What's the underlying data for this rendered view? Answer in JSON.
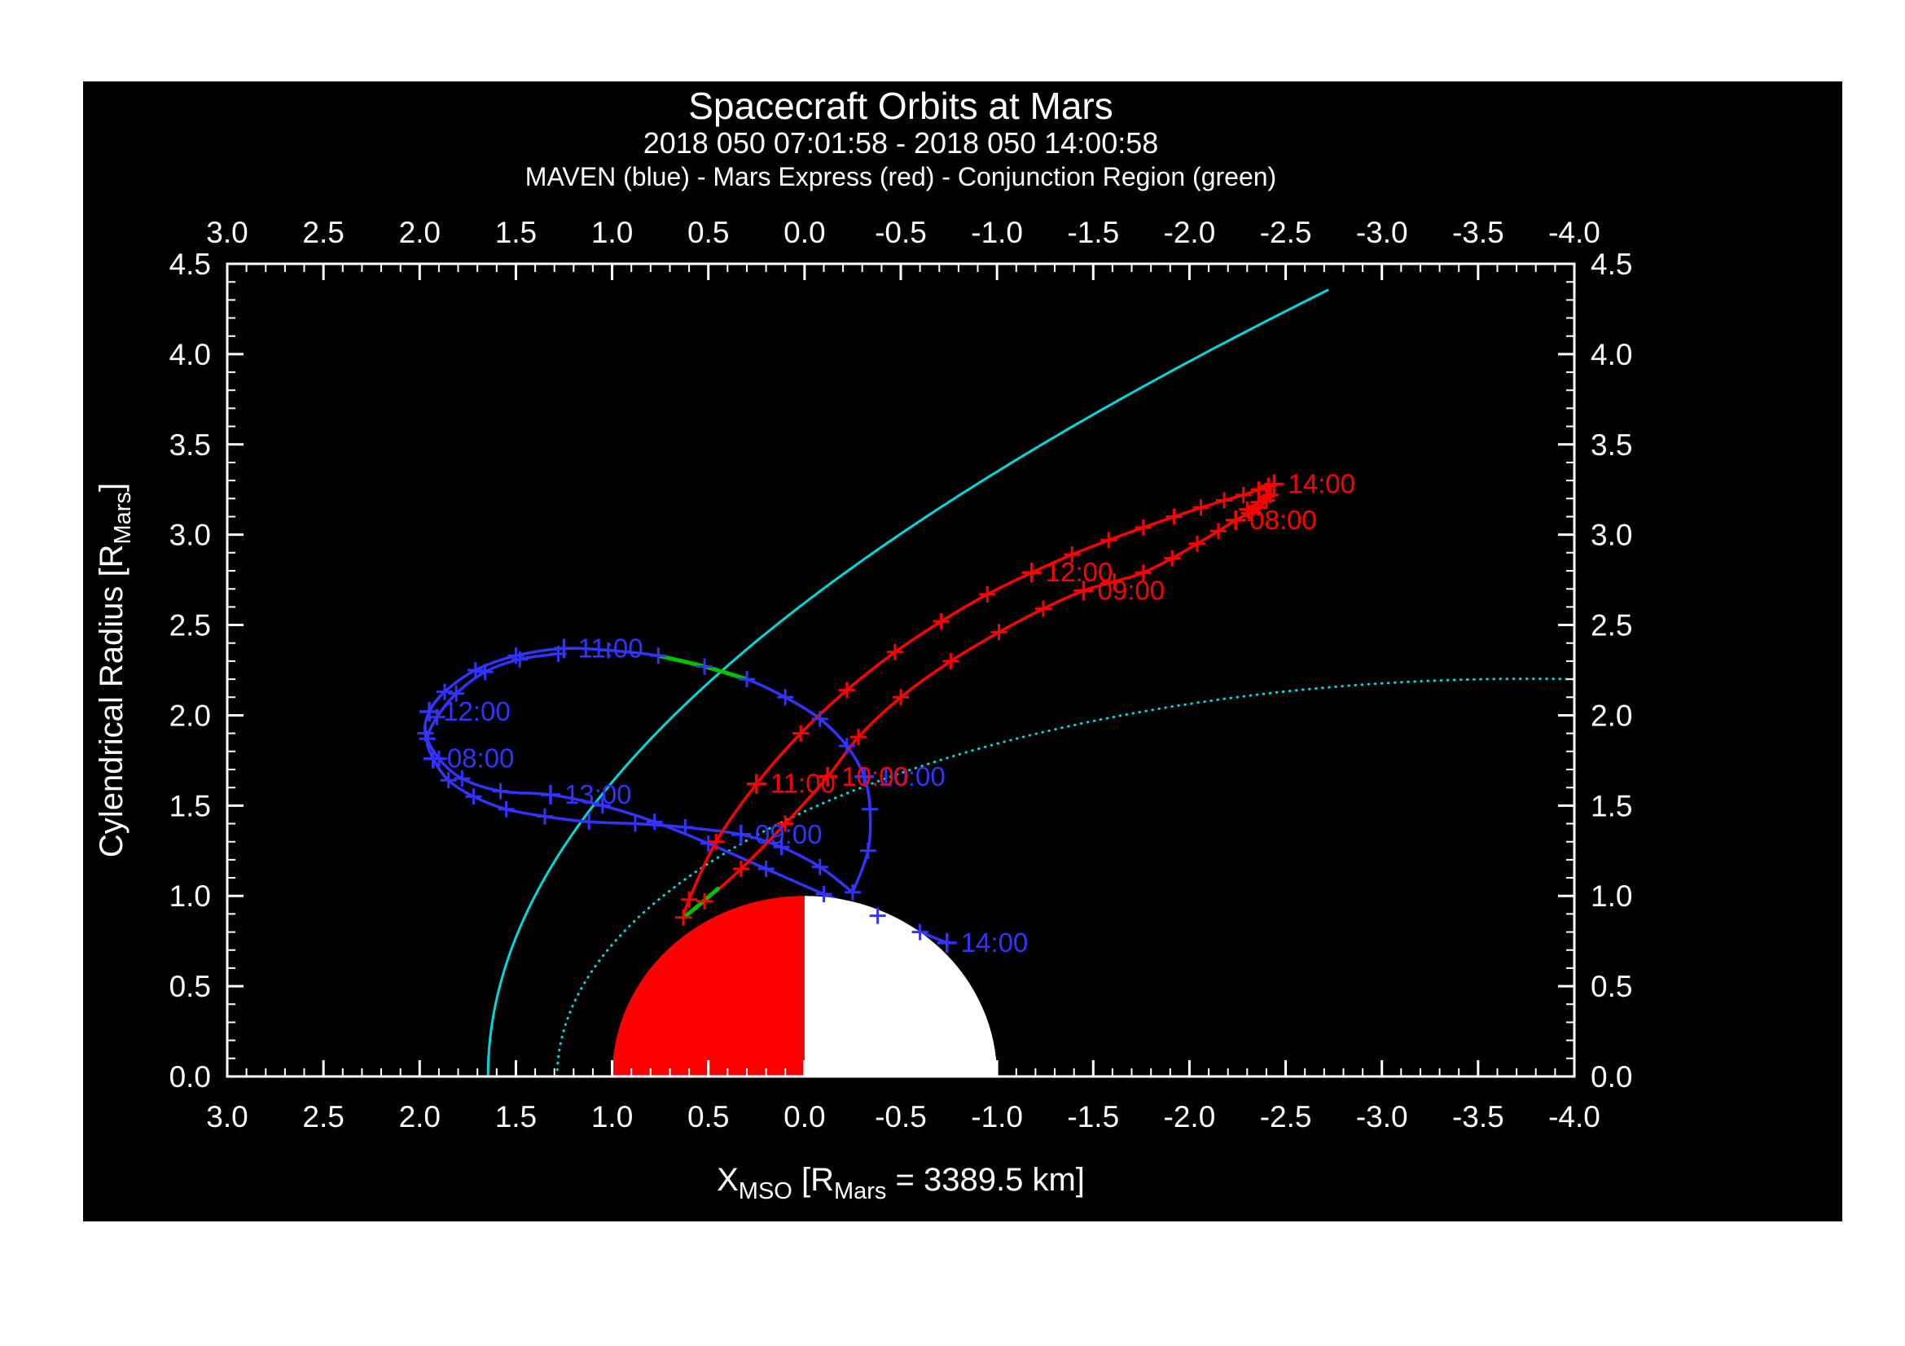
{
  "title": "Spacecraft Orbits at Mars",
  "subtitle": "2018 050 07:01:58 - 2018 050 14:00:58",
  "legend": "MAVEN (blue) - Mars Express (red) - Conjunction Region (green)",
  "labels": {
    "x_main": "X",
    "x_sub": "MSO",
    "x_mid": " [R",
    "x_sub2": "Mars",
    "x_end": " = 3389.5 km]",
    "y_main": "Cylendrical Radius [R",
    "y_sub": "Mars",
    "y_end": "]"
  },
  "colors": {
    "page": "#ffffff",
    "background": "#000000",
    "axis": "#ffffff",
    "maven_blue": "#3333ff",
    "mex_red": "#ff0000",
    "conjunction_green": "#00c000",
    "boundary_cyan": "#00d9d9",
    "mars_day": "#ff0000",
    "mars_night": "#ffffff"
  },
  "chart_data": {
    "type": "line",
    "title": "Spacecraft Orbits at Mars",
    "subtitle": "2018 050 07:01:58 - 2018 050 14:00:58",
    "xlabel": "X_MSO [R_Mars = 3389.5 km]",
    "ylabel": "Cylendrical Radius [R_Mars]",
    "xlim": [
      3.0,
      -4.0
    ],
    "ylim": [
      0.0,
      4.5
    ],
    "xticks": [
      3.0,
      2.5,
      2.0,
      1.5,
      1.0,
      0.5,
      0.0,
      -0.5,
      -1.0,
      -1.5,
      -2.0,
      -2.5,
      -3.0,
      -3.5,
      -4.0
    ],
    "yticks": [
      4.5,
      4.0,
      3.5,
      3.0,
      2.5,
      2.0,
      1.5,
      1.0,
      0.5,
      0.0
    ],
    "minor_tick_step": 0.1,
    "mars": {
      "radius": 1.0,
      "dayside": "sunward (+X) half filled red",
      "nightside": "anti-sunward half filled white"
    },
    "boundaries": [
      {
        "name": "bow_shock",
        "style": "solid",
        "x0": 0.64,
        "eccentricity": 1.03,
        "semi_latus_rectum": 2.04
      },
      {
        "name": "magnetic_pileup_boundary",
        "style": "dotted",
        "x0": 0.78,
        "eccentricity": 0.9,
        "semi_latus_rectum": 0.96
      }
    ],
    "series": [
      {
        "name": "MAVEN",
        "color_key": "maven_blue",
        "markers": true,
        "passes": [
          [
            [
              1.28,
              2.34
            ],
            [
              1.48,
              2.31
            ],
            [
              1.66,
              2.24
            ],
            [
              1.81,
              2.12
            ],
            [
              1.91,
              1.99
            ],
            [
              1.96,
              1.87
            ],
            [
              1.93,
              1.76
            ],
            [
              1.85,
              1.64
            ],
            [
              1.72,
              1.55
            ],
            [
              1.55,
              1.48
            ],
            [
              1.35,
              1.44
            ],
            [
              1.12,
              1.41
            ],
            [
              0.88,
              1.4
            ],
            [
              0.62,
              1.38
            ],
            [
              0.33,
              1.34
            ],
            [
              0.12,
              1.27
            ],
            [
              -0.08,
              1.16
            ],
            [
              -0.25,
              1.02
            ]
          ],
          [
            [
              -0.25,
              1.02
            ],
            [
              -0.33,
              1.25
            ],
            [
              -0.34,
              1.48
            ],
            [
              -0.31,
              1.66
            ],
            [
              -0.22,
              1.83
            ],
            [
              -0.08,
              1.98
            ],
            [
              0.1,
              2.1
            ],
            [
              0.3,
              2.2
            ],
            [
              0.52,
              2.27
            ],
            [
              0.76,
              2.33
            ],
            [
              1.02,
              2.36
            ],
            [
              1.25,
              2.37
            ],
            [
              1.5,
              2.33
            ],
            [
              1.71,
              2.25
            ],
            [
              1.87,
              2.13
            ],
            [
              1.95,
              2.02
            ],
            [
              1.97,
              1.9
            ],
            [
              1.9,
              1.76
            ],
            [
              1.78,
              1.65
            ],
            [
              1.58,
              1.58
            ],
            [
              1.32,
              1.56
            ],
            [
              1.05,
              1.5
            ],
            [
              0.78,
              1.41
            ],
            [
              0.5,
              1.29
            ],
            [
              0.2,
              1.15
            ],
            [
              -0.1,
              1.01
            ],
            [
              -0.38,
              0.89
            ],
            [
              -0.6,
              0.8
            ],
            [
              -0.74,
              0.74
            ]
          ]
        ],
        "time_markers": [
          {
            "t": "08:00",
            "x": 1.93,
            "y": 1.76
          },
          {
            "t": "09:00",
            "x": 0.33,
            "y": 1.34
          },
          {
            "t": "10:00",
            "x": -0.31,
            "y": 1.66
          },
          {
            "t": "11:00",
            "x": 1.25,
            "y": 2.37
          },
          {
            "t": "12:00",
            "x": 1.95,
            "y": 2.02
          },
          {
            "t": "13:00",
            "x": 1.32,
            "y": 1.56
          },
          {
            "t": "14:00",
            "x": -0.74,
            "y": 0.74
          }
        ]
      },
      {
        "name": "Mars Express",
        "color_key": "mex_red",
        "markers": true,
        "passes": [
          [
            [
              -2.3,
              3.14
            ],
            [
              -2.36,
              3.18
            ],
            [
              -2.4,
              3.21
            ],
            [
              -2.42,
              3.22
            ],
            [
              -2.4,
              3.19
            ],
            [
              -2.36,
              3.15
            ],
            [
              -2.31,
              3.12
            ],
            [
              -2.24,
              3.08
            ],
            [
              -2.15,
              3.02
            ],
            [
              -2.04,
              2.95
            ],
            [
              -1.91,
              2.87
            ],
            [
              -1.76,
              2.79
            ],
            [
              -1.61,
              2.74
            ],
            [
              -1.45,
              2.69
            ],
            [
              -1.24,
              2.59
            ],
            [
              -1.01,
              2.46
            ],
            [
              -0.76,
              2.3
            ],
            [
              -0.5,
              2.1
            ],
            [
              -0.28,
              1.88
            ],
            [
              -0.12,
              1.66
            ],
            [
              0.1,
              1.4
            ],
            [
              0.33,
              1.15
            ],
            [
              0.52,
              0.97
            ],
            [
              0.63,
              0.88
            ]
          ],
          [
            [
              0.63,
              0.88
            ],
            [
              0.6,
              0.98
            ],
            [
              0.46,
              1.3
            ],
            [
              0.25,
              1.62
            ],
            [
              0.02,
              1.9
            ],
            [
              -0.22,
              2.14
            ],
            [
              -0.47,
              2.35
            ],
            [
              -0.71,
              2.52
            ],
            [
              -0.95,
              2.67
            ],
            [
              -1.18,
              2.79
            ],
            [
              -1.39,
              2.89
            ],
            [
              -1.58,
              2.97
            ],
            [
              -1.76,
              3.04
            ],
            [
              -1.92,
              3.1
            ],
            [
              -2.06,
              3.15
            ],
            [
              -2.18,
              3.19
            ],
            [
              -2.28,
              3.22
            ],
            [
              -2.36,
              3.25
            ],
            [
              -2.41,
              3.27
            ],
            [
              -2.44,
              3.28
            ]
          ]
        ],
        "time_markers": [
          {
            "t": "08:00",
            "x": -2.24,
            "y": 3.08
          },
          {
            "t": "09:00",
            "x": -1.45,
            "y": 2.69
          },
          {
            "t": "10:00",
            "x": -0.12,
            "y": 1.66
          },
          {
            "t": "11:00",
            "x": 0.25,
            "y": 1.62
          },
          {
            "t": "12:00",
            "x": -1.18,
            "y": 2.79
          },
          {
            "t": "14:00",
            "x": -2.44,
            "y": 3.28
          }
        ]
      },
      {
        "name": "Conjunction Region",
        "color_key": "conjunction_green",
        "markers": false,
        "passes": [
          [
            [
              0.3,
              2.2
            ],
            [
              0.52,
              2.27
            ],
            [
              0.76,
              2.33
            ]
          ],
          [
            [
              0.45,
              1.04
            ],
            [
              0.57,
              0.93
            ],
            [
              0.63,
              0.88
            ]
          ]
        ],
        "time_markers": []
      }
    ]
  }
}
